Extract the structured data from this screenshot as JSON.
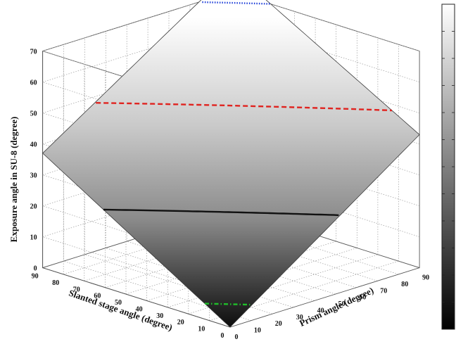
{
  "chart_data": {
    "type": "surface",
    "title": "",
    "xlabel": "Prism angle (degree)",
    "ylabel": "Slanted stage angle (degree)",
    "zlabel": "Exposure angle in SU-8 (degree)",
    "xlim": [
      0,
      90
    ],
    "ylim": [
      0,
      90
    ],
    "zlim": [
      0,
      70
    ],
    "x_ticks": [
      "0",
      "10",
      "20",
      "30",
      "40",
      "50",
      "60",
      "70",
      "80",
      "90"
    ],
    "y_ticks": [
      "0",
      "10",
      "20",
      "30",
      "40",
      "50",
      "60",
      "70",
      "80",
      "90"
    ],
    "z_ticks": [
      "0",
      "10",
      "20",
      "30",
      "40",
      "50",
      "60",
      "70"
    ],
    "grid": true,
    "colormap": "gray",
    "colorbar": true,
    "corner_values": [
      {
        "prism": 0,
        "stage": 0,
        "exposure": 0
      },
      {
        "prism": 90,
        "stage": 0,
        "exposure": 43
      },
      {
        "prism": 0,
        "stage": 90,
        "exposure": 37
      },
      {
        "prism": 90,
        "stage": 90,
        "exposure": 77
      }
    ],
    "contour_lines": [
      {
        "level": 70,
        "color": "#1f3fd8",
        "style": "dotted"
      },
      {
        "level": 48,
        "color": "#e0231f",
        "style": "dashed"
      },
      {
        "level": 25,
        "color": "#111111",
        "style": "solid"
      },
      {
        "level": 5,
        "color": "#1fbf2a",
        "style": "dash-dot"
      }
    ]
  }
}
